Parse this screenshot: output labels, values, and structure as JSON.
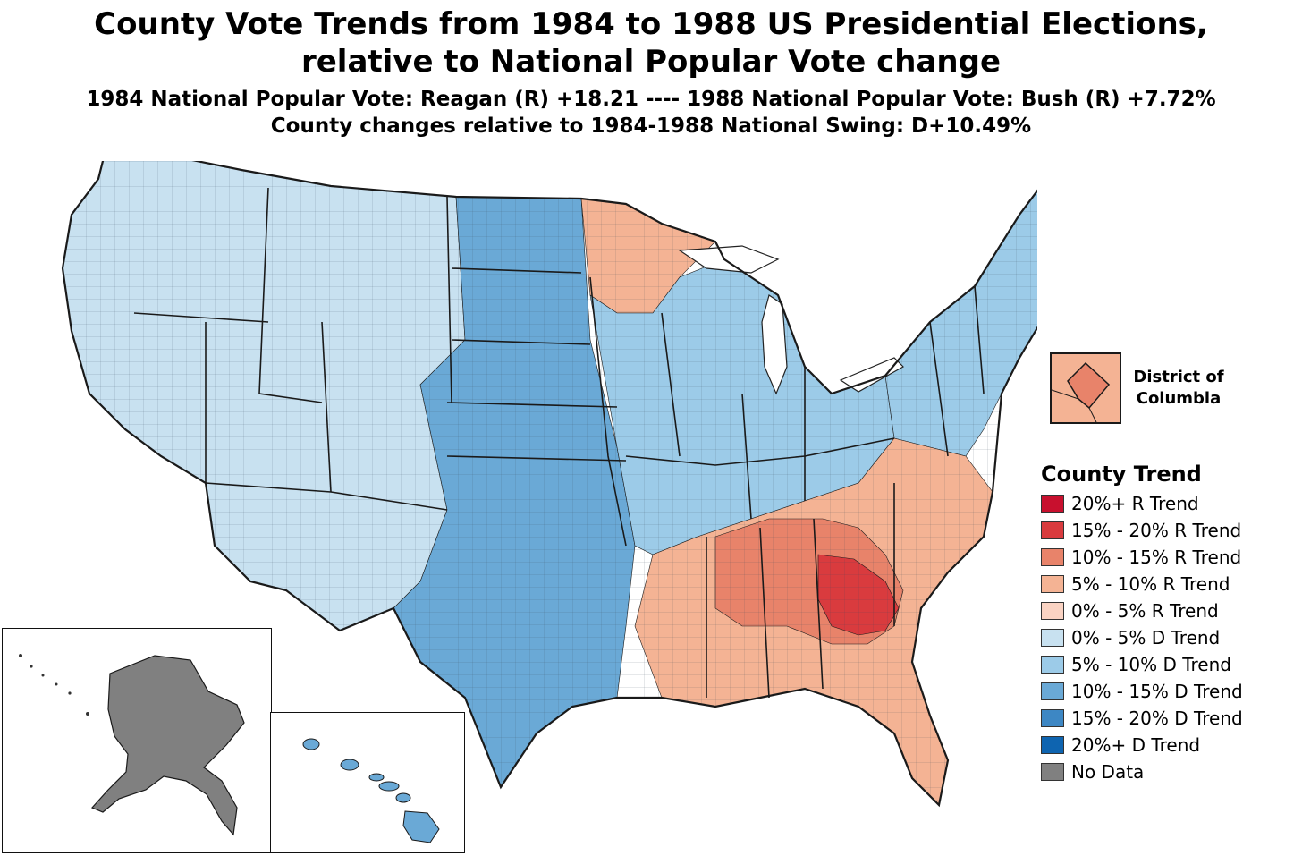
{
  "header": {
    "title_line1": "County Vote Trends from 1984 to 1988 US Presidential Elections,",
    "title_line2": "relative to National Popular Vote change",
    "subtitle_line1": "1984 National Popular Vote: Reagan (R) +18.21 ---- 1988 National Popular Vote: Bush (R) +7.72%",
    "subtitle_line2": "County changes relative to 1984-1988 National Swing: D+10.49%"
  },
  "dc_inset": {
    "label_line1": "District of",
    "label_line2": "Columbia",
    "color": "#f4b394"
  },
  "legend": {
    "title": "County Trend",
    "items": [
      {
        "label": "20%+ R Trend",
        "color": "#c8102e"
      },
      {
        "label": "15% - 20% R Trend",
        "color": "#d93b3e"
      },
      {
        "label": "10% - 15% R Trend",
        "color": "#e8836a"
      },
      {
        "label": "5% - 10% R Trend",
        "color": "#f4b394"
      },
      {
        "label": "0% - 5% R Trend",
        "color": "#fad3c3"
      },
      {
        "label": "0% - 5% D Trend",
        "color": "#c8e1f0"
      },
      {
        "label": "5% - 10% D Trend",
        "color": "#9ccbe8"
      },
      {
        "label": "10% - 15% D Trend",
        "color": "#6aa9d6"
      },
      {
        "label": "15% - 20% D Trend",
        "color": "#3d87c4"
      },
      {
        "label": "20%+ D Trend",
        "color": "#0e64b0"
      },
      {
        "label": "No Data",
        "color": "#808080"
      }
    ]
  },
  "regions": {
    "west": "#c8e1f0",
    "plains": "#6aa9d6",
    "midwest": "#9ccbe8",
    "southeast": "#f4b394",
    "deep_south": "#e8836a",
    "georgia_core": "#d93b3e",
    "northeast": "#9ccbe8",
    "minnesota": "#f4b394",
    "alaska": "#808080",
    "hawaii": "#6aa9d6"
  }
}
